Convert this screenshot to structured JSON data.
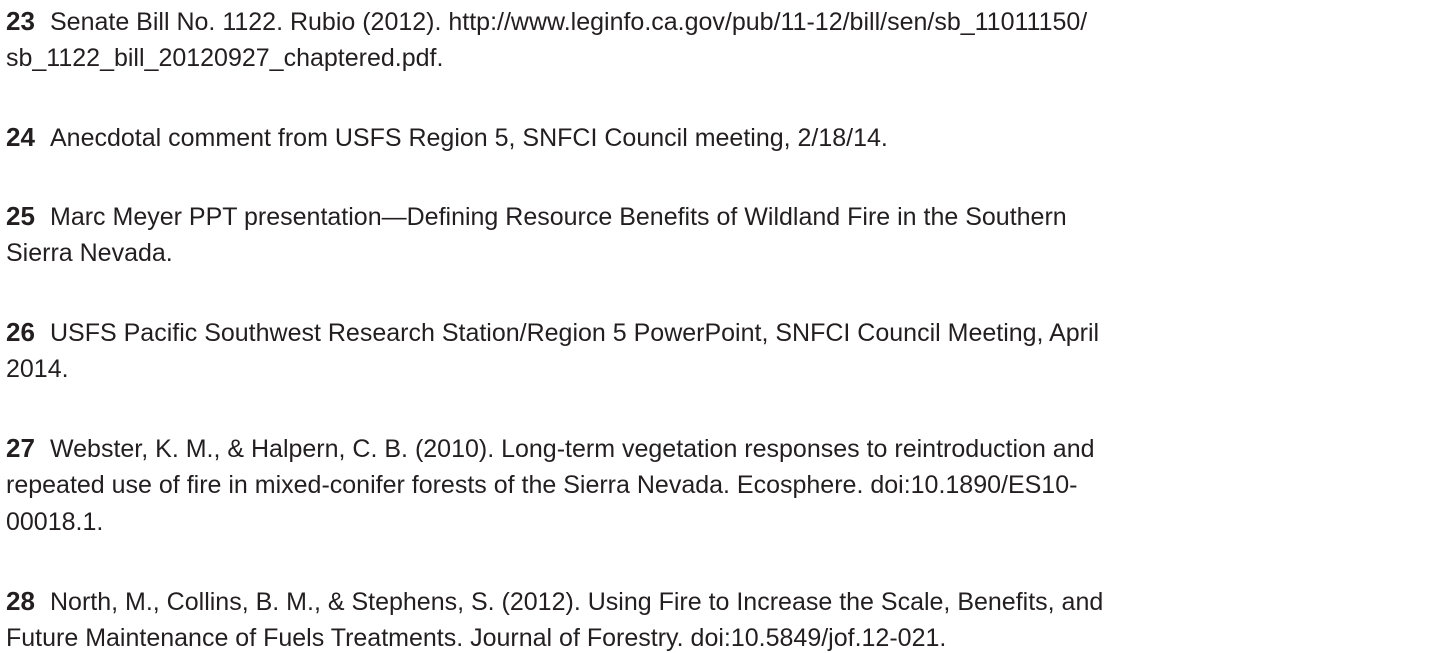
{
  "notes": [
    {
      "number": "23",
      "lines": [
        "Senate Bill No. 1122. Rubio (2012). http://www.leginfo.ca.gov/pub/11-12/bill/sen/sb_11011150/",
        "sb_1122_bill_20120927_chaptered.pdf."
      ]
    },
    {
      "number": "24",
      "lines": [
        "Anecdotal comment from USFS Region 5, SNFCI Council meeting, 2/18/14."
      ]
    },
    {
      "number": "25",
      "lines": [
        "Marc Meyer PPT presentation—Defining Resource Benefits of Wildland Fire in the Southern",
        "Sierra Nevada."
      ]
    },
    {
      "number": "26",
      "lines": [
        "USFS Pacific Southwest Research Station/Region 5 PowerPoint, SNFCI Council Meeting, April",
        "2014."
      ]
    },
    {
      "number": "27",
      "lines": [
        "Webster, K. M., & Halpern, C. B. (2010). Long-term vegetation responses to reintroduction and",
        "repeated use of fire in mixed-conifer forests of the Sierra Nevada. Ecosphere. doi:10.1890/ES10-",
        "00018.1."
      ]
    },
    {
      "number": "28",
      "lines": [
        "North, M., Collins, B. M., & Stephens, S. (2012). Using Fire to Increase the Scale, Benefits, and",
        "Future Maintenance of Fuels Treatments. Journal of Forestry. doi:10.5849/jof.12-021."
      ]
    }
  ]
}
